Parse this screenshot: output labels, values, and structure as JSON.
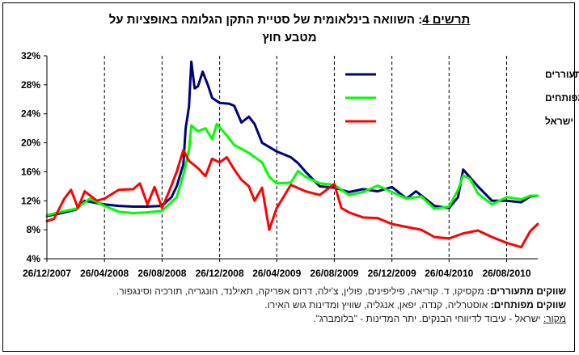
{
  "header": {
    "figure_label": "תרשים 4",
    "title_part1": "השוואה בינלאומית של סטיית התקן הגלומה באופציות על",
    "title_part2": "מטבע חוץ"
  },
  "notes": {
    "emerging_key": "שווקים מתעוררים:",
    "emerging_text": "מקסיקו, ד. קוריאה, פיליפינים, פולין, צ'ילה, דרום אפריקה, תאילנד, הונגריה, תורכיה וסינגפור.",
    "developed_key": "שווקים מפותחים:",
    "developed_text": "אוסטרליה, קנדה, יפאן, אנגליה, שוויץ ומדינות גוש האירו.",
    "source_key": "מקור:",
    "source_text": "ישראל - עיבוד לדיווחי הבנקים. יתר המדינות - \"בלומברג\"."
  },
  "chart_data": {
    "type": "line",
    "title": "השוואה בינלאומית של סטיית התקן הגלומה באופציות על מטבע חוץ",
    "x_tick_labels": [
      "26/12/2007",
      "26/04/2008",
      "26/08/2008",
      "26/12/2008",
      "26/04/2009",
      "26/08/2009",
      "26/12/2009",
      "26/04/2010",
      "26/08/2010"
    ],
    "y_tick_labels": [
      "4%",
      "8%",
      "12%",
      "16%",
      "20%",
      "24%",
      "28%",
      "32%"
    ],
    "ylim": [
      4,
      32
    ],
    "xlim": [
      "2007-12-26",
      "2010-10-31"
    ],
    "grid": "vertical dashed at x ticks",
    "legend_position": "right",
    "series": [
      {
        "name": "ממוצע שווקים מתעוררים",
        "color": "#000080",
        "points": [
          [
            "2007-12-26",
            9.9
          ],
          [
            "2008-01-26",
            10.3
          ],
          [
            "2008-02-26",
            10.8
          ],
          [
            "2008-03-15",
            12.0
          ],
          [
            "2008-04-01",
            11.8
          ],
          [
            "2008-04-26",
            11.5
          ],
          [
            "2008-05-26",
            11.3
          ],
          [
            "2008-06-26",
            11.2
          ],
          [
            "2008-07-26",
            11.2
          ],
          [
            "2008-08-26",
            11.3
          ],
          [
            "2008-09-15",
            12.5
          ],
          [
            "2008-09-26",
            14.0
          ],
          [
            "2008-10-10",
            17.0
          ],
          [
            "2008-10-15",
            22.0
          ],
          [
            "2008-10-22",
            25.0
          ],
          [
            "2008-10-27",
            31.2
          ],
          [
            "2008-11-03",
            27.5
          ],
          [
            "2008-11-10",
            27.8
          ],
          [
            "2008-11-20",
            29.8
          ],
          [
            "2008-12-01",
            28.0
          ],
          [
            "2008-12-10",
            26.2
          ],
          [
            "2008-12-26",
            25.5
          ],
          [
            "2009-01-15",
            25.4
          ],
          [
            "2009-01-26",
            25.1
          ],
          [
            "2009-02-10",
            22.8
          ],
          [
            "2009-02-26",
            23.6
          ],
          [
            "2009-03-10",
            22.6
          ],
          [
            "2009-03-26",
            20.0
          ],
          [
            "2009-04-26",
            18.8
          ],
          [
            "2009-05-26",
            18.0
          ],
          [
            "2009-06-10",
            17.2
          ],
          [
            "2009-06-26",
            16.0
          ],
          [
            "2009-07-26",
            14.0
          ],
          [
            "2009-08-26",
            13.8
          ],
          [
            "2009-09-26",
            13.2
          ],
          [
            "2009-10-26",
            13.6
          ],
          [
            "2009-11-26",
            13.3
          ],
          [
            "2009-12-26",
            13.9
          ],
          [
            "2010-01-26",
            12.3
          ],
          [
            "2010-02-15",
            13.3
          ],
          [
            "2010-03-26",
            11.3
          ],
          [
            "2010-04-26",
            11.0
          ],
          [
            "2010-05-15",
            12.5
          ],
          [
            "2010-05-26",
            16.3
          ],
          [
            "2010-06-10",
            15.2
          ],
          [
            "2010-06-26",
            14.0
          ],
          [
            "2010-07-26",
            12.0
          ],
          [
            "2010-08-26",
            12.0
          ],
          [
            "2010-09-26",
            11.8
          ],
          [
            "2010-10-15",
            12.6
          ],
          [
            "2010-10-31",
            12.7
          ]
        ]
      },
      {
        "name": "ממוצע שווקים מפותחים",
        "color": "#00ff00",
        "points": [
          [
            "2007-12-26",
            10.0
          ],
          [
            "2008-01-26",
            10.5
          ],
          [
            "2008-02-26",
            10.9
          ],
          [
            "2008-03-26",
            12.3
          ],
          [
            "2008-04-26",
            11.3
          ],
          [
            "2008-05-26",
            10.5
          ],
          [
            "2008-06-26",
            10.3
          ],
          [
            "2008-07-26",
            10.4
          ],
          [
            "2008-08-26",
            10.6
          ],
          [
            "2008-09-26",
            12.5
          ],
          [
            "2008-10-12",
            16.0
          ],
          [
            "2008-10-22",
            19.0
          ],
          [
            "2008-10-27",
            22.4
          ],
          [
            "2008-11-10",
            21.6
          ],
          [
            "2008-11-26",
            22.0
          ],
          [
            "2008-12-10",
            20.5
          ],
          [
            "2008-12-20",
            22.6
          ],
          [
            "2009-01-10",
            21.0
          ],
          [
            "2009-01-26",
            19.7
          ],
          [
            "2009-02-26",
            18.6
          ],
          [
            "2009-03-26",
            17.3
          ],
          [
            "2009-04-10",
            15.3
          ],
          [
            "2009-04-26",
            14.4
          ],
          [
            "2009-05-26",
            14.5
          ],
          [
            "2009-06-10",
            16.1
          ],
          [
            "2009-06-26",
            15.3
          ],
          [
            "2009-07-26",
            14.4
          ],
          [
            "2009-08-26",
            14.2
          ],
          [
            "2009-09-26",
            12.8
          ],
          [
            "2009-10-26",
            13.2
          ],
          [
            "2009-11-26",
            14.1
          ],
          [
            "2009-12-26",
            13.2
          ],
          [
            "2010-01-26",
            12.3
          ],
          [
            "2010-02-26",
            12.6
          ],
          [
            "2010-03-26",
            10.9
          ],
          [
            "2010-04-26",
            11.2
          ],
          [
            "2010-05-15",
            13.5
          ],
          [
            "2010-05-26",
            15.5
          ],
          [
            "2010-06-10",
            15.0
          ],
          [
            "2010-06-26",
            13.0
          ],
          [
            "2010-07-26",
            11.5
          ],
          [
            "2010-08-26",
            12.5
          ],
          [
            "2010-09-26",
            12.2
          ],
          [
            "2010-10-15",
            12.7
          ],
          [
            "2010-10-31",
            12.7
          ]
        ]
      },
      {
        "name": "ישראל",
        "color": "#ff0000",
        "points": [
          [
            "2007-12-26",
            9.2
          ],
          [
            "2008-01-10",
            9.5
          ],
          [
            "2008-02-01",
            12.3
          ],
          [
            "2008-02-15",
            13.5
          ],
          [
            "2008-03-01",
            11.0
          ],
          [
            "2008-03-15",
            13.3
          ],
          [
            "2008-04-10",
            12.0
          ],
          [
            "2008-04-26",
            12.3
          ],
          [
            "2008-05-26",
            13.5
          ],
          [
            "2008-06-26",
            13.6
          ],
          [
            "2008-07-10",
            14.4
          ],
          [
            "2008-07-26",
            11.5
          ],
          [
            "2008-08-10",
            13.9
          ],
          [
            "2008-08-26",
            11.0
          ],
          [
            "2008-09-10",
            13.3
          ],
          [
            "2008-09-26",
            16.0
          ],
          [
            "2008-10-10",
            19.0
          ],
          [
            "2008-10-22",
            17.5
          ],
          [
            "2008-11-10",
            16.5
          ],
          [
            "2008-11-26",
            15.4
          ],
          [
            "2008-12-10",
            17.8
          ],
          [
            "2008-12-26",
            17.3
          ],
          [
            "2009-01-10",
            18.0
          ],
          [
            "2009-01-26",
            16.3
          ],
          [
            "2009-02-10",
            14.9
          ],
          [
            "2009-02-26",
            14.0
          ],
          [
            "2009-03-10",
            12.0
          ],
          [
            "2009-03-26",
            13.8
          ],
          [
            "2009-04-10",
            8.0
          ],
          [
            "2009-04-26",
            11.0
          ],
          [
            "2009-05-26",
            14.2
          ],
          [
            "2009-06-26",
            13.3
          ],
          [
            "2009-07-26",
            12.8
          ],
          [
            "2009-08-26",
            14.3
          ],
          [
            "2009-09-10",
            11.0
          ],
          [
            "2009-09-26",
            10.4
          ],
          [
            "2009-10-26",
            9.7
          ],
          [
            "2009-11-26",
            9.6
          ],
          [
            "2009-12-26",
            8.8
          ],
          [
            "2010-01-26",
            8.4
          ],
          [
            "2010-02-26",
            8.0
          ],
          [
            "2010-03-26",
            7.0
          ],
          [
            "2010-04-26",
            6.8
          ],
          [
            "2010-05-26",
            7.5
          ],
          [
            "2010-06-26",
            7.9
          ],
          [
            "2010-07-26",
            7.0
          ],
          [
            "2010-08-26",
            6.2
          ],
          [
            "2010-09-26",
            5.6
          ],
          [
            "2010-10-15",
            7.8
          ],
          [
            "2010-10-31",
            8.8
          ]
        ]
      }
    ]
  }
}
